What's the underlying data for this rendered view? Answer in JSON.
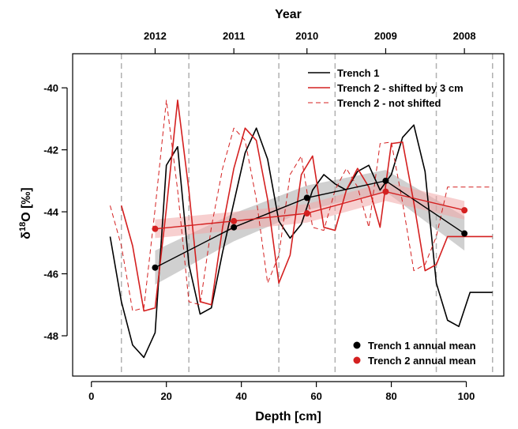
{
  "chart_data": {
    "type": "line",
    "top_axis_title": "Year",
    "xlabel": "Depth [cm]",
    "ylabel_prefix": "δ",
    "ylabel_sup": "18",
    "ylabel_suffix": "O [‰]",
    "xlim": [
      -5,
      110
    ],
    "ylim": [
      -49.3,
      -38.9
    ],
    "x_ticks": [
      0,
      20,
      40,
      60,
      80,
      100
    ],
    "y_ticks": [
      -48,
      -46,
      -44,
      -42,
      -40
    ],
    "year_ticks": [
      {
        "label": "2012",
        "x": 17
      },
      {
        "label": "2011",
        "x": 38
      },
      {
        "label": "2010",
        "x": 57.5
      },
      {
        "label": "2009",
        "x": 78.5
      },
      {
        "label": "2008",
        "x": 99.5
      }
    ],
    "year_boundaries": [
      8,
      26,
      50,
      65,
      92,
      107
    ],
    "series": [
      {
        "name": "Trench 1",
        "color": "#000000",
        "style": "solid",
        "x": [
          5,
          8,
          11,
          14,
          17,
          20,
          23,
          26,
          29,
          32,
          35,
          38,
          41,
          44,
          47,
          50,
          53,
          56,
          59,
          62,
          65,
          68,
          71,
          74,
          77,
          80,
          83,
          86,
          89,
          92,
          95,
          98,
          101,
          104,
          107
        ],
        "y": [
          -44.8,
          -46.9,
          -48.3,
          -48.7,
          -47.9,
          -42.5,
          -41.9,
          -45.7,
          -47.3,
          -47.1,
          -45.3,
          -43.7,
          -42.1,
          -41.3,
          -42.3,
          -44.3,
          -44.85,
          -44.4,
          -43.3,
          -42.8,
          -43.1,
          -43.3,
          -42.7,
          -42.5,
          -43.3,
          -42.8,
          -41.6,
          -41.2,
          -42.7,
          -46.3,
          -47.5,
          -47.7,
          -46.6,
          -46.6,
          -46.6
        ]
      },
      {
        "name": "Trench 2 - shifted by 3 cm",
        "color": "#d42020",
        "style": "solid",
        "x": [
          8,
          11,
          14,
          17,
          20,
          23,
          26,
          29,
          32,
          35,
          38,
          41,
          44,
          47,
          50,
          53,
          56,
          59,
          62,
          65,
          68,
          71,
          74,
          77,
          80,
          83,
          86,
          89,
          92,
          95,
          98,
          101,
          104,
          107
        ],
        "y": [
          -43.8,
          -45.1,
          -47.2,
          -47.1,
          -43.9,
          -40.4,
          -43.3,
          -46.9,
          -47.0,
          -44.5,
          -42.6,
          -41.3,
          -41.7,
          -43.6,
          -46.3,
          -45.4,
          -42.8,
          -42.2,
          -44.5,
          -44.6,
          -43.3,
          -42.6,
          -43.2,
          -44.5,
          -41.8,
          -41.75,
          -43.7,
          -45.9,
          -45.7,
          -44.8,
          -44.8,
          -44.8,
          -44.8,
          -44.8
        ]
      },
      {
        "name": "Trench 2 - not shifted",
        "color": "#d42020",
        "style": "dashed",
        "x": [
          5,
          8,
          11,
          14,
          17,
          20,
          23,
          26,
          29,
          32,
          35,
          38,
          41,
          44,
          47,
          50,
          53,
          56,
          59,
          62,
          65,
          68,
          71,
          74,
          77,
          80,
          83,
          86,
          89,
          92,
          95,
          98,
          101,
          104,
          107
        ],
        "y": [
          -43.8,
          -45.1,
          -47.2,
          -47.1,
          -43.9,
          -40.4,
          -43.3,
          -46.9,
          -47.0,
          -44.5,
          -42.6,
          -41.3,
          -41.7,
          -43.6,
          -46.3,
          -45.4,
          -42.8,
          -42.2,
          -44.5,
          -44.6,
          -43.3,
          -42.6,
          -43.2,
          -44.5,
          -41.8,
          -41.75,
          -43.7,
          -45.9,
          -45.7,
          -44.8,
          -43.2,
          -43.2,
          -43.2,
          -43.2,
          -43.2
        ]
      }
    ],
    "annual_means": [
      {
        "name": "Trench 1 annual mean",
        "color": "#000000",
        "band_color": "#aaaaaa",
        "x": [
          17,
          38,
          57.5,
          78.5,
          99.5
        ],
        "y": [
          -45.8,
          -44.5,
          -43.55,
          -43.0,
          -44.7
        ],
        "band": [
          0.55,
          0.45,
          0.4,
          0.35,
          0.55
        ]
      },
      {
        "name": "Trench 2 annual mean",
        "color": "#d42020",
        "band_color": "#f0a8a8",
        "x": [
          17,
          38,
          57.5,
          78.5,
          99.5
        ],
        "y": [
          -44.55,
          -44.3,
          -44.05,
          -43.35,
          -43.95
        ],
        "band": [
          0.3,
          0.3,
          0.3,
          0.3,
          0.3
        ]
      }
    ],
    "legend_top": [
      {
        "label": "Trench 1",
        "color": "#000000",
        "style": "solid"
      },
      {
        "label": "Trench 2 - shifted by 3 cm",
        "color": "#d42020",
        "style": "solid"
      },
      {
        "label": "Trench 2 - not shifted",
        "color": "#d42020",
        "style": "dashed"
      }
    ],
    "legend_bottom": [
      {
        "label": "Trench 1 annual mean",
        "color": "#000000"
      },
      {
        "label": "Trench 2 annual mean",
        "color": "#d42020"
      }
    ]
  }
}
